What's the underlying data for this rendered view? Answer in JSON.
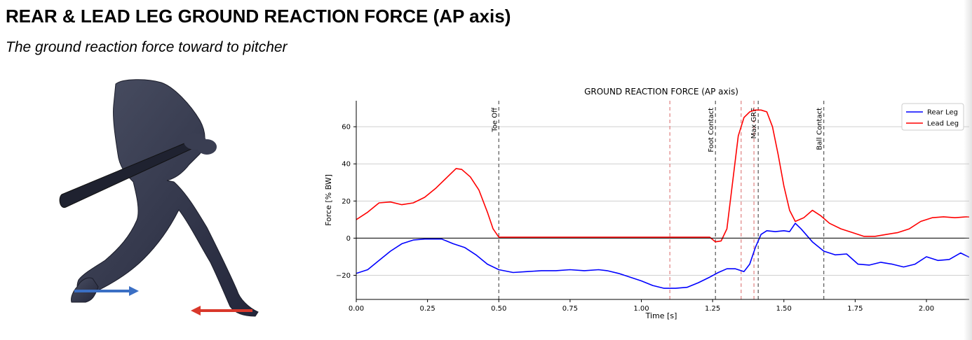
{
  "page": {
    "title": "REAR & LEAD LEG GROUND REACTION FORCE (AP axis)",
    "subtitle": "The ground reaction force toward to pitcher"
  },
  "colors": {
    "rear_arrow": "#3b6fc4",
    "lead_arrow": "#d9382b",
    "figure_body": "#34384a"
  },
  "chart_data": {
    "type": "line",
    "title": "GROUND REACTION FORCE (AP axis)",
    "xlabel": "Time [s]",
    "ylabel": "Force [% BW]",
    "xlim": [
      0,
      2.15
    ],
    "ylim": [
      -33,
      74
    ],
    "xticks": [
      0,
      0.25,
      0.5,
      0.75,
      1.0,
      1.25,
      1.5,
      1.75,
      2.0
    ],
    "xtick_labels": [
      "0.00",
      "0.25",
      "0.50",
      "0.75",
      "1.00",
      "1.25",
      "1.50",
      "1.75",
      "2.00"
    ],
    "yticks": [
      -20,
      0,
      20,
      40,
      60
    ],
    "ytick_labels": [
      "−20",
      "0",
      "20",
      "40",
      "60"
    ],
    "grid": "horizontal",
    "legend": "top-right",
    "series": [
      {
        "name": "Rear Leg",
        "color": "#0000ff",
        "points": [
          [
            0.0,
            -19
          ],
          [
            0.04,
            -17
          ],
          [
            0.08,
            -12
          ],
          [
            0.12,
            -7
          ],
          [
            0.16,
            -3
          ],
          [
            0.2,
            -1
          ],
          [
            0.24,
            -0.5
          ],
          [
            0.28,
            -0.5
          ],
          [
            0.3,
            -0.5
          ],
          [
            0.34,
            -3
          ],
          [
            0.38,
            -5
          ],
          [
            0.42,
            -9
          ],
          [
            0.46,
            -14
          ],
          [
            0.5,
            -17
          ],
          [
            0.55,
            -18.5
          ],
          [
            0.6,
            -18
          ],
          [
            0.65,
            -17.5
          ],
          [
            0.7,
            -17.5
          ],
          [
            0.75,
            -17
          ],
          [
            0.8,
            -17.5
          ],
          [
            0.85,
            -17
          ],
          [
            0.88,
            -17.5
          ],
          [
            0.92,
            -19
          ],
          [
            0.96,
            -21
          ],
          [
            1.0,
            -23
          ],
          [
            1.04,
            -25.5
          ],
          [
            1.08,
            -27
          ],
          [
            1.12,
            -27
          ],
          [
            1.16,
            -26.5
          ],
          [
            1.2,
            -24
          ],
          [
            1.24,
            -21
          ],
          [
            1.27,
            -18.5
          ],
          [
            1.3,
            -16.5
          ],
          [
            1.33,
            -16.5
          ],
          [
            1.36,
            -18
          ],
          [
            1.38,
            -14
          ],
          [
            1.4,
            -5
          ],
          [
            1.42,
            2
          ],
          [
            1.44,
            4
          ],
          [
            1.47,
            3.5
          ],
          [
            1.5,
            4
          ],
          [
            1.52,
            3.5
          ],
          [
            1.54,
            8
          ],
          [
            1.56,
            5
          ],
          [
            1.6,
            -2
          ],
          [
            1.64,
            -7
          ],
          [
            1.68,
            -9
          ],
          [
            1.72,
            -8.5
          ],
          [
            1.76,
            -14
          ],
          [
            1.8,
            -14.5
          ],
          [
            1.84,
            -13
          ],
          [
            1.88,
            -14
          ],
          [
            1.92,
            -15.5
          ],
          [
            1.96,
            -14
          ],
          [
            2.0,
            -10
          ],
          [
            2.04,
            -12
          ],
          [
            2.08,
            -11.5
          ],
          [
            2.12,
            -8
          ],
          [
            2.16,
            -11
          ],
          [
            2.2,
            -12.5
          ]
        ]
      },
      {
        "name": "Lead Leg",
        "color": "#ff0000",
        "points": [
          [
            0.0,
            10
          ],
          [
            0.04,
            14
          ],
          [
            0.08,
            19
          ],
          [
            0.12,
            19.5
          ],
          [
            0.16,
            18
          ],
          [
            0.2,
            19
          ],
          [
            0.24,
            22
          ],
          [
            0.28,
            27
          ],
          [
            0.32,
            33
          ],
          [
            0.35,
            37.5
          ],
          [
            0.37,
            37
          ],
          [
            0.4,
            33
          ],
          [
            0.43,
            26
          ],
          [
            0.46,
            14
          ],
          [
            0.48,
            5
          ],
          [
            0.5,
            0.5
          ],
          [
            0.55,
            0.5
          ],
          [
            0.7,
            0.5
          ],
          [
            0.9,
            0.5
          ],
          [
            1.1,
            0.5
          ],
          [
            1.24,
            0.5
          ],
          [
            1.26,
            -2
          ],
          [
            1.28,
            -1.5
          ],
          [
            1.3,
            5
          ],
          [
            1.32,
            30
          ],
          [
            1.34,
            55
          ],
          [
            1.36,
            65
          ],
          [
            1.38,
            68
          ],
          [
            1.4,
            69
          ],
          [
            1.42,
            69
          ],
          [
            1.44,
            68
          ],
          [
            1.46,
            60
          ],
          [
            1.48,
            45
          ],
          [
            1.5,
            28
          ],
          [
            1.52,
            15
          ],
          [
            1.54,
            9
          ],
          [
            1.57,
            11
          ],
          [
            1.6,
            15
          ],
          [
            1.63,
            12
          ],
          [
            1.66,
            8
          ],
          [
            1.7,
            5
          ],
          [
            1.74,
            3
          ],
          [
            1.78,
            1
          ],
          [
            1.82,
            1
          ],
          [
            1.86,
            2
          ],
          [
            1.9,
            3
          ],
          [
            1.94,
            5
          ],
          [
            1.98,
            9
          ],
          [
            2.02,
            11
          ],
          [
            2.06,
            11.5
          ],
          [
            2.1,
            11
          ],
          [
            2.14,
            11.5
          ],
          [
            2.18,
            11
          ],
          [
            2.2,
            10
          ]
        ]
      }
    ],
    "events": [
      {
        "label": "Toe Off",
        "x": 0.5,
        "color": "#555555"
      },
      {
        "label": "",
        "x": 1.1,
        "color": "#e08080"
      },
      {
        "label": "Foot Contact",
        "x": 1.26,
        "color": "#555555"
      },
      {
        "label": "",
        "x": 1.35,
        "color": "#e08080"
      },
      {
        "label": "",
        "x": 1.395,
        "color": "#e08080"
      },
      {
        "label": "Max GRF",
        "x": 1.41,
        "color": "#555555"
      },
      {
        "label": "Ball Contact",
        "x": 1.64,
        "color": "#555555"
      }
    ]
  }
}
